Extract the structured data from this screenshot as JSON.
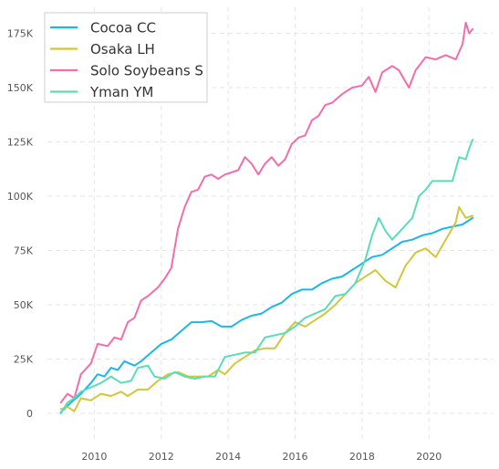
{
  "chart_data": {
    "type": "line",
    "title": "",
    "xlabel": "",
    "ylabel": "",
    "xlim": [
      2008.6,
      2021.9
    ],
    "ylim": [
      -13000,
      187000
    ],
    "grid": true,
    "legend_position": "top-left",
    "x_ticks": [
      {
        "value": 2010,
        "label": "2010"
      },
      {
        "value": 2012,
        "label": "2012"
      },
      {
        "value": 2014,
        "label": "2014"
      },
      {
        "value": 2016,
        "label": "2016"
      },
      {
        "value": 2018,
        "label": "2018"
      },
      {
        "value": 2020,
        "label": "2020"
      }
    ],
    "y_ticks": [
      {
        "value": 0,
        "label": "0"
      },
      {
        "value": 25000,
        "label": "25K"
      },
      {
        "value": 50000,
        "label": "50K"
      },
      {
        "value": 75000,
        "label": "75K"
      },
      {
        "value": 100000,
        "label": "100K"
      },
      {
        "value": 125000,
        "label": "125K"
      },
      {
        "value": 150000,
        "label": "150K"
      },
      {
        "value": 175000,
        "label": "175K"
      }
    ],
    "series": [
      {
        "name": "Cocoa CC",
        "color": "#1bb7ea",
        "points": [
          [
            2009.0,
            500
          ],
          [
            2009.3,
            5000
          ],
          [
            2009.6,
            9000
          ],
          [
            2009.9,
            14000
          ],
          [
            2010.1,
            18000
          ],
          [
            2010.3,
            17000
          ],
          [
            2010.5,
            21000
          ],
          [
            2010.7,
            20000
          ],
          [
            2010.9,
            24000
          ],
          [
            2011.2,
            22000
          ],
          [
            2011.4,
            24000
          ],
          [
            2011.7,
            28000
          ],
          [
            2012.0,
            32000
          ],
          [
            2012.3,
            34000
          ],
          [
            2012.6,
            38000
          ],
          [
            2012.9,
            42000
          ],
          [
            2013.2,
            42000
          ],
          [
            2013.5,
            42500
          ],
          [
            2013.8,
            40000
          ],
          [
            2014.1,
            40000
          ],
          [
            2014.4,
            43000
          ],
          [
            2014.7,
            45000
          ],
          [
            2015.0,
            46000
          ],
          [
            2015.3,
            49000
          ],
          [
            2015.6,
            51000
          ],
          [
            2015.9,
            55000
          ],
          [
            2016.2,
            57000
          ],
          [
            2016.5,
            57000
          ],
          [
            2016.8,
            60000
          ],
          [
            2017.1,
            62000
          ],
          [
            2017.4,
            63000
          ],
          [
            2017.7,
            66000
          ],
          [
            2018.0,
            69000
          ],
          [
            2018.3,
            72000
          ],
          [
            2018.6,
            73000
          ],
          [
            2018.9,
            76000
          ],
          [
            2019.2,
            79000
          ],
          [
            2019.5,
            80000
          ],
          [
            2019.8,
            82000
          ],
          [
            2020.1,
            83000
          ],
          [
            2020.4,
            85000
          ],
          [
            2020.7,
            86000
          ],
          [
            2021.0,
            87000
          ],
          [
            2021.3,
            90000
          ]
        ]
      },
      {
        "name": "Osaka LH",
        "color": "#d2c63a",
        "points": [
          [
            2009.0,
            2000
          ],
          [
            2009.2,
            3000
          ],
          [
            2009.4,
            1000
          ],
          [
            2009.6,
            7000
          ],
          [
            2009.9,
            6000
          ],
          [
            2010.2,
            9000
          ],
          [
            2010.5,
            8000
          ],
          [
            2010.8,
            10000
          ],
          [
            2011.0,
            8000
          ],
          [
            2011.3,
            11000
          ],
          [
            2011.6,
            11000
          ],
          [
            2011.9,
            15000
          ],
          [
            2012.2,
            18000
          ],
          [
            2012.5,
            19000
          ],
          [
            2012.8,
            17000
          ],
          [
            2013.1,
            17000
          ],
          [
            2013.4,
            17000
          ],
          [
            2013.7,
            20000
          ],
          [
            2013.9,
            18000
          ],
          [
            2014.2,
            23000
          ],
          [
            2014.5,
            26000
          ],
          [
            2014.8,
            29000
          ],
          [
            2015.1,
            30000
          ],
          [
            2015.4,
            30000
          ],
          [
            2015.7,
            37000
          ],
          [
            2016.0,
            42000
          ],
          [
            2016.3,
            40000
          ],
          [
            2016.6,
            43000
          ],
          [
            2016.9,
            46000
          ],
          [
            2017.2,
            50000
          ],
          [
            2017.5,
            55000
          ],
          [
            2017.8,
            60000
          ],
          [
            2018.1,
            63000
          ],
          [
            2018.4,
            66000
          ],
          [
            2018.7,
            61000
          ],
          [
            2019.0,
            58000
          ],
          [
            2019.3,
            68000
          ],
          [
            2019.6,
            74000
          ],
          [
            2019.9,
            76000
          ],
          [
            2020.2,
            72000
          ],
          [
            2020.5,
            80000
          ],
          [
            2020.8,
            88000
          ],
          [
            2020.9,
            95000
          ],
          [
            2021.1,
            90000
          ],
          [
            2021.3,
            91000
          ]
        ]
      },
      {
        "name": "Solo Soybeans S",
        "color": "#f36dab",
        "points": [
          [
            2009.0,
            5000
          ],
          [
            2009.2,
            9000
          ],
          [
            2009.4,
            7000
          ],
          [
            2009.6,
            18000
          ],
          [
            2009.9,
            23000
          ],
          [
            2010.1,
            32000
          ],
          [
            2010.4,
            31000
          ],
          [
            2010.6,
            35000
          ],
          [
            2010.8,
            34000
          ],
          [
            2011.0,
            42000
          ],
          [
            2011.2,
            44000
          ],
          [
            2011.4,
            52000
          ],
          [
            2011.6,
            54000
          ],
          [
            2011.9,
            58000
          ],
          [
            2012.1,
            62000
          ],
          [
            2012.3,
            67000
          ],
          [
            2012.5,
            85000
          ],
          [
            2012.7,
            95000
          ],
          [
            2012.9,
            102000
          ],
          [
            2013.1,
            103000
          ],
          [
            2013.3,
            109000
          ],
          [
            2013.5,
            110000
          ],
          [
            2013.7,
            108000
          ],
          [
            2013.9,
            110000
          ],
          [
            2014.1,
            111000
          ],
          [
            2014.3,
            112000
          ],
          [
            2014.5,
            118000
          ],
          [
            2014.7,
            115000
          ],
          [
            2014.9,
            110000
          ],
          [
            2015.1,
            115000
          ],
          [
            2015.3,
            118000
          ],
          [
            2015.5,
            114000
          ],
          [
            2015.7,
            117000
          ],
          [
            2015.9,
            124000
          ],
          [
            2016.1,
            127000
          ],
          [
            2016.3,
            128000
          ],
          [
            2016.5,
            135000
          ],
          [
            2016.7,
            137000
          ],
          [
            2016.9,
            142000
          ],
          [
            2017.1,
            143000
          ],
          [
            2017.4,
            147000
          ],
          [
            2017.7,
            150000
          ],
          [
            2018.0,
            151000
          ],
          [
            2018.2,
            155000
          ],
          [
            2018.4,
            148000
          ],
          [
            2018.6,
            157000
          ],
          [
            2018.9,
            160000
          ],
          [
            2019.1,
            158000
          ],
          [
            2019.4,
            150000
          ],
          [
            2019.6,
            158000
          ],
          [
            2019.9,
            164000
          ],
          [
            2020.2,
            163000
          ],
          [
            2020.5,
            165000
          ],
          [
            2020.8,
            163000
          ],
          [
            2021.0,
            170000
          ],
          [
            2021.1,
            180000
          ],
          [
            2021.2,
            175000
          ],
          [
            2021.3,
            177000
          ]
        ]
      },
      {
        "name": "Yman YM",
        "color": "#5bdcb8",
        "points": [
          [
            2009.0,
            0
          ],
          [
            2009.2,
            5000
          ],
          [
            2009.4,
            7000
          ],
          [
            2009.6,
            10000
          ],
          [
            2009.9,
            12000
          ],
          [
            2010.2,
            14000
          ],
          [
            2010.5,
            17000
          ],
          [
            2010.8,
            14000
          ],
          [
            2011.1,
            15000
          ],
          [
            2011.3,
            21000
          ],
          [
            2011.6,
            22000
          ],
          [
            2011.8,
            17000
          ],
          [
            2012.1,
            16000
          ],
          [
            2012.4,
            19000
          ],
          [
            2012.7,
            17000
          ],
          [
            2013.0,
            16000
          ],
          [
            2013.3,
            17000
          ],
          [
            2013.6,
            17000
          ],
          [
            2013.9,
            26000
          ],
          [
            2014.2,
            27000
          ],
          [
            2014.5,
            28000
          ],
          [
            2014.8,
            28000
          ],
          [
            2015.1,
            35000
          ],
          [
            2015.4,
            36000
          ],
          [
            2015.7,
            37000
          ],
          [
            2016.0,
            40000
          ],
          [
            2016.3,
            44000
          ],
          [
            2016.6,
            46000
          ],
          [
            2016.9,
            48000
          ],
          [
            2017.2,
            54000
          ],
          [
            2017.5,
            55000
          ],
          [
            2017.8,
            60000
          ],
          [
            2018.1,
            71000
          ],
          [
            2018.3,
            82000
          ],
          [
            2018.5,
            90000
          ],
          [
            2018.7,
            84000
          ],
          [
            2018.9,
            80000
          ],
          [
            2019.2,
            85000
          ],
          [
            2019.5,
            90000
          ],
          [
            2019.7,
            100000
          ],
          [
            2019.9,
            103000
          ],
          [
            2020.1,
            107000
          ],
          [
            2020.4,
            107000
          ],
          [
            2020.7,
            107000
          ],
          [
            2020.9,
            118000
          ],
          [
            2021.1,
            117000
          ],
          [
            2021.2,
            122000
          ],
          [
            2021.3,
            126000
          ]
        ]
      }
    ]
  }
}
